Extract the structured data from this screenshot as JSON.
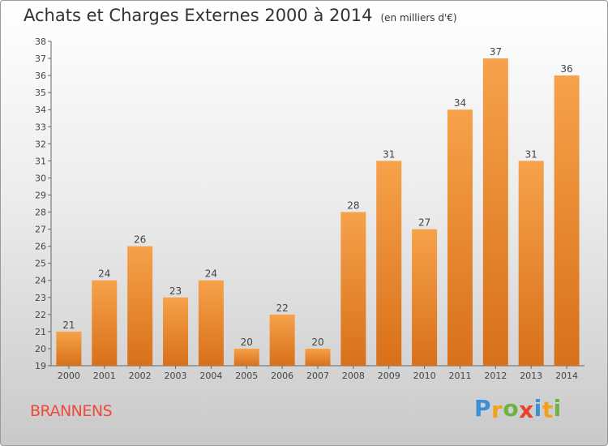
{
  "title": "Achats et Charges Externes 2000 à 2014",
  "subtitle": "(en milliers d'€)",
  "place": "BRANNENS",
  "logo": [
    "P",
    "r",
    "o",
    "x",
    "i",
    "t",
    "i"
  ],
  "colors": {
    "bar_top": "#f6a24a",
    "bar_bottom": "#d8701a",
    "brand_text": "#ee4a3c",
    "logo": [
      "#3a8fd6",
      "#f0a21c",
      "#6cb43f",
      "#e8412c",
      "#3a8fd6",
      "#f0a21c",
      "#6cb43f"
    ]
  },
  "chart_data": {
    "type": "bar",
    "categories": [
      "2000",
      "2001",
      "2002",
      "2003",
      "2004",
      "2005",
      "2006",
      "2007",
      "2008",
      "2009",
      "2010",
      "2011",
      "2012",
      "2013",
      "2014"
    ],
    "values": [
      21,
      24,
      26,
      23,
      24,
      20,
      22,
      20,
      28,
      31,
      27,
      34,
      37,
      31,
      36
    ],
    "title": "Achats et Charges Externes 2000 à 2014",
    "ylim": [
      19,
      38
    ],
    "y_ticks": [
      19,
      20,
      21,
      22,
      23,
      24,
      25,
      26,
      27,
      28,
      29,
      30,
      31,
      32,
      33,
      34,
      35,
      36,
      37,
      38
    ],
    "grid": false,
    "legend": "none"
  }
}
